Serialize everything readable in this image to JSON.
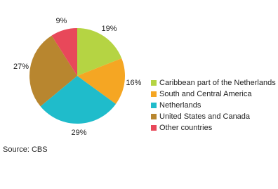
{
  "chart_data": {
    "type": "pie",
    "categories": [
      "Caribbean part of the Netherlands",
      "South and Central America",
      "Netherlands",
      "United States and Canada",
      "Other countries"
    ],
    "values": [
      19,
      16,
      29,
      27,
      9
    ],
    "value_labels": [
      "19%",
      "16%",
      "29%",
      "27%",
      "9%"
    ],
    "colors": [
      "#b5d443",
      "#f5a623",
      "#1fbccb",
      "#b8862f",
      "#e8485a"
    ],
    "source": "Source: CBS"
  }
}
